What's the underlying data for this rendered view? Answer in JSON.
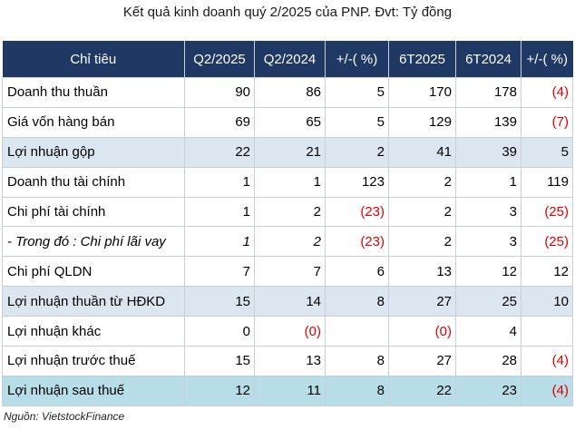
{
  "title": "Kết quả kinh doanh quý 2/2025 của PNP. Đvt: Tỷ đồng",
  "headers": [
    "Chỉ tiêu",
    "Q2/2025",
    "Q2/2024",
    "+/-( %)",
    "6T2025",
    "6T2024",
    "+/-( %)"
  ],
  "rows": [
    {
      "label": "Doanh thu thuần",
      "cells": [
        "90",
        "86",
        "5",
        "170",
        "178",
        "(4)"
      ]
    },
    {
      "label": "Giá vốn hàng bán",
      "cells": [
        "69",
        "65",
        "5",
        "129",
        "139",
        "(7)"
      ]
    },
    {
      "label": "Lợi nhuận gộp",
      "cells": [
        "22",
        "21",
        "2",
        "41",
        "39",
        "5"
      ]
    },
    {
      "label": "Doanh thu tài chính",
      "cells": [
        "1",
        "1",
        "123",
        "2",
        "1",
        "119"
      ]
    },
    {
      "label": "Chi phí tài chính",
      "cells": [
        "1",
        "2",
        "(23)",
        "2",
        "3",
        "(25)"
      ]
    },
    {
      "label": "- Trong đó : Chi phí lãi vay",
      "cells": [
        "1",
        "2",
        "(23)",
        "2",
        "3",
        "(25)"
      ]
    },
    {
      "label": "Chi phí QLDN",
      "cells": [
        "7",
        "7",
        "6",
        "13",
        "12",
        "12"
      ]
    },
    {
      "label": "Lợi nhuận thuần từ HĐKD",
      "cells": [
        "15",
        "14",
        "8",
        "27",
        "25",
        "10"
      ]
    },
    {
      "label": "Lợi nhuận khác",
      "cells": [
        "0",
        "(0)",
        "",
        "(0)",
        "4",
        ""
      ]
    },
    {
      "label": "Lợi nhuận trước thuế",
      "cells": [
        "15",
        "13",
        "8",
        "27",
        "28",
        "(4)"
      ]
    },
    {
      "label": "Lợi nhuận sau thuế",
      "cells": [
        "12",
        "11",
        "8",
        "22",
        "23",
        "(4)"
      ]
    }
  ],
  "colors": {
    "header_bg": "#1f3864",
    "highlight": "#dce6f1",
    "highlight_strong": "#b7dde8",
    "negative": "#e00000"
  },
  "source": "Nguồn: VietstockFinance"
}
